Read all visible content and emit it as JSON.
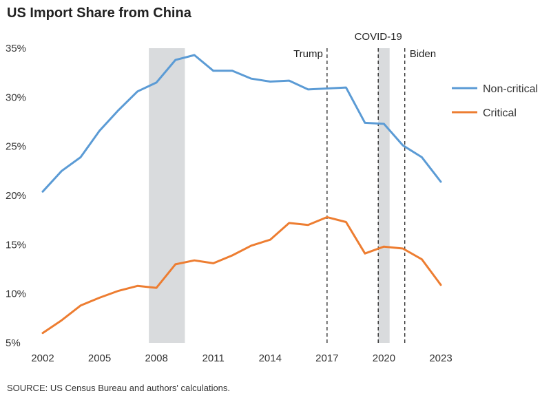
{
  "chart_data": {
    "type": "line",
    "title": "US Import Share from China",
    "xlabel": "",
    "ylabel": "",
    "xlim": [
      2002,
      2023
    ],
    "ylim": [
      5,
      35
    ],
    "x_ticks": [
      2002,
      2005,
      2008,
      2011,
      2014,
      2017,
      2020,
      2023
    ],
    "x_tick_labels": [
      "2002",
      "2005",
      "2008",
      "2011",
      "2014",
      "2017",
      "2020",
      "2023"
    ],
    "y_ticks": [
      5,
      10,
      15,
      20,
      25,
      30,
      35
    ],
    "y_tick_labels": [
      "5%",
      "10%",
      "15%",
      "20%",
      "25%",
      "30%",
      "35%"
    ],
    "x": [
      2002,
      2003,
      2004,
      2005,
      2006,
      2007,
      2008,
      2009,
      2010,
      2011,
      2012,
      2013,
      2014,
      2015,
      2016,
      2017,
      2018,
      2019,
      2020,
      2021,
      2022,
      2023
    ],
    "series": [
      {
        "name": "Non-critical",
        "color": "#5b9bd5",
        "values": [
          20.4,
          22.5,
          23.9,
          26.6,
          28.7,
          30.6,
          31.5,
          33.8,
          34.3,
          32.7,
          32.7,
          31.9,
          31.6,
          31.7,
          30.8,
          30.9,
          31.0,
          27.4,
          27.3,
          25.1,
          23.9,
          21.4
        ]
      },
      {
        "name": "Critical",
        "color": "#ed7d31",
        "values": [
          6.0,
          7.3,
          8.8,
          9.6,
          10.3,
          10.8,
          10.6,
          13.0,
          13.4,
          13.1,
          13.9,
          14.9,
          15.5,
          17.2,
          17.0,
          17.8,
          17.3,
          14.1,
          14.8,
          14.6,
          13.5,
          10.9
        ]
      }
    ],
    "shaded_regions": [
      {
        "start": 2007.6,
        "end": 2009.5,
        "color": "#d9dbdd"
      },
      {
        "start": 2019.7,
        "end": 2020.3,
        "color": "#d9dbdd"
      }
    ],
    "vertical_markers": [
      {
        "x": 2017.0,
        "label": "Trump",
        "label_side": "left"
      },
      {
        "x": 2019.7,
        "label": "COVID-19",
        "label_side": "center"
      },
      {
        "x": 2021.1,
        "label": "Biden",
        "label_side": "right"
      }
    ],
    "grid": false,
    "legend_placement": "right"
  },
  "source": "SOURCE: US Census Bureau and authors' calculations."
}
